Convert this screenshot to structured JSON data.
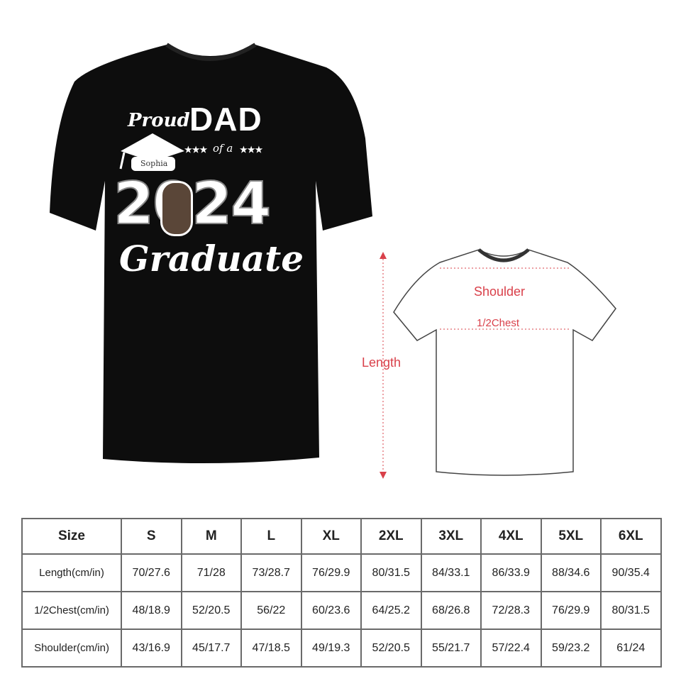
{
  "product": {
    "shirt_color": "#0d0d0d",
    "print": {
      "line1": "Proud",
      "line2": "DAD",
      "line3": "of a",
      "stars": "★★★",
      "name": "Sophia",
      "year": "2024",
      "line4": "Graduate"
    }
  },
  "diagram": {
    "accent_color": "#d9404a",
    "labels": {
      "shoulder": "Shoulder",
      "chest": "1/2Chest",
      "length": "Length"
    }
  },
  "size_chart": {
    "header": [
      "Size",
      "S",
      "M",
      "L",
      "XL",
      "2XL",
      "3XL",
      "4XL",
      "5XL",
      "6XL"
    ],
    "rows": [
      {
        "label": "Length(cm/in)",
        "values": [
          "70/27.6",
          "71/28",
          "73/28.7",
          "76/29.9",
          "80/31.5",
          "84/33.1",
          "86/33.9",
          "88/34.6",
          "90/35.4"
        ]
      },
      {
        "label": "1/2Chest(cm/in)",
        "values": [
          "48/18.9",
          "52/20.5",
          "56/22",
          "60/23.6",
          "64/25.2",
          "68/26.8",
          "72/28.3",
          "76/29.9",
          "80/31.5"
        ]
      },
      {
        "label": "Shoulder(cm/in)",
        "values": [
          "43/16.9",
          "45/17.7",
          "47/18.5",
          "49/19.3",
          "52/20.5",
          "55/21.7",
          "57/22.4",
          "59/23.2",
          "61/24"
        ]
      }
    ]
  }
}
